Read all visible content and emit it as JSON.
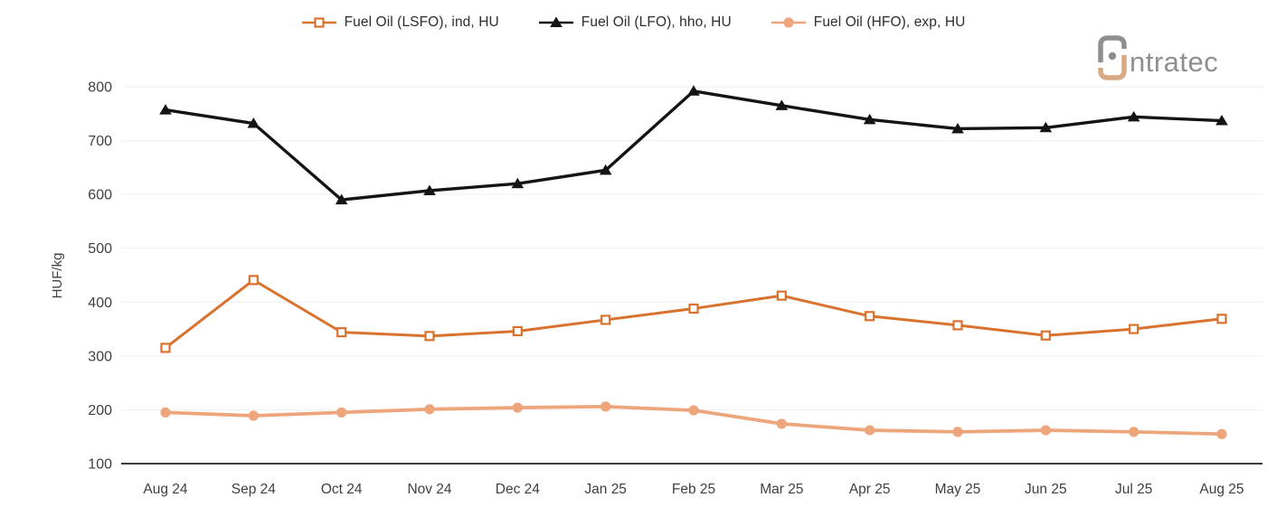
{
  "logo": {
    "text": "ntratec",
    "mark_letter": "i",
    "gray": "#8f8f8f",
    "tan": "#d8a880"
  },
  "colors": {
    "grid": "#efefef",
    "axis_line": "#3b3b3b",
    "tick_text": "#404040",
    "legend_text": "#2d2d2d",
    "background": "#ffffff"
  },
  "chart_data": {
    "type": "line",
    "title": "",
    "xlabel": "",
    "ylabel": "HUF/kg",
    "ylim": [
      100,
      800
    ],
    "yticks": [
      100,
      200,
      300,
      400,
      500,
      600,
      700,
      800
    ],
    "grid": true,
    "legend_position": "top-center",
    "categories": [
      "Aug 24",
      "Sep 24",
      "Oct 24",
      "Nov 24",
      "Dec 24",
      "Jan 25",
      "Feb 25",
      "Mar 25",
      "Apr 25",
      "May 25",
      "Jun 25",
      "Jul 25",
      "Aug 25"
    ],
    "series": [
      {
        "name": "Fuel Oil (LSFO), ind, HU",
        "color": "#d9722e",
        "marker": "square-open",
        "line_width": 3,
        "values": [
          315,
          441,
          344,
          337,
          346,
          367,
          388,
          412,
          374,
          357,
          338,
          350,
          369
        ]
      },
      {
        "name": "Fuel Oil (LFO), hho, HU",
        "color": "#141414",
        "marker": "triangle",
        "line_width": 3.4,
        "values": [
          757,
          732,
          590,
          607,
          620,
          645,
          792,
          765,
          739,
          722,
          724,
          744,
          737
        ]
      },
      {
        "name": "Fuel Oil (HFO), exp, HU",
        "color": "#eda57c",
        "marker": "circle",
        "line_width": 3.8,
        "values": [
          195,
          189,
          195,
          201,
          204,
          206,
          199,
          174,
          162,
          159,
          162,
          159,
          155
        ]
      }
    ]
  }
}
